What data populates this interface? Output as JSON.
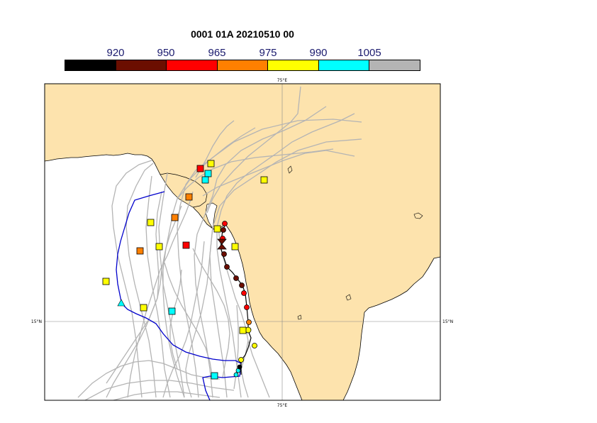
{
  "title": "0001 01A 20210510 00",
  "colorbar": {
    "labels": [
      "920",
      "950",
      "965",
      "975",
      "990",
      "1005"
    ],
    "colors": [
      "#000000",
      "#6b0e00",
      "#ff0000",
      "#ff8000",
      "#ffff00",
      "#00ffff",
      "#b4b4b4"
    ]
  },
  "map": {
    "land_color": "#fde3ad",
    "sea_color": "#ffffff",
    "gridlines": {
      "lon": "75°E",
      "lat": "15°N"
    },
    "tick_labels": {
      "top": "75°E",
      "bottom": "75°E",
      "left": "15°N",
      "right": "15°N"
    }
  },
  "legend_pressure_classes": {
    "black": "<920",
    "dark_red": "920-950",
    "red": "950-965",
    "orange": "965-975",
    "yellow": "975-990",
    "cyan": "990-1005",
    "gray": ">1005"
  }
}
